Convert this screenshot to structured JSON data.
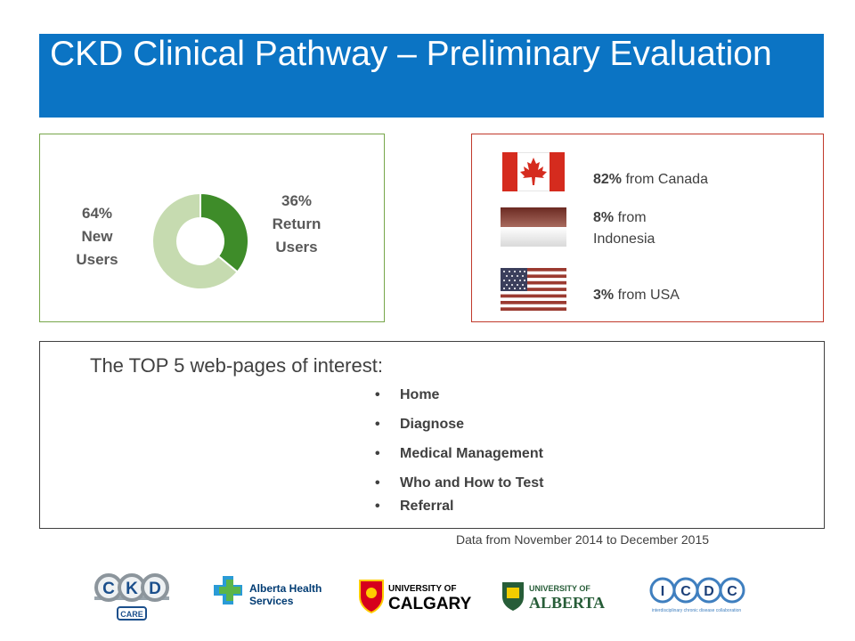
{
  "title": "CKD Clinical Pathway – Preliminary Evaluation",
  "users": {
    "new": {
      "percent": "64%",
      "line1": "New",
      "line2": "Users",
      "value": 64,
      "color": "#c6dbb0"
    },
    "return": {
      "percent": "36%",
      "line1": "Return",
      "line2": "Users",
      "value": 36,
      "color": "#3e8c29"
    }
  },
  "countries": [
    {
      "percent": "82%",
      "text": "from Canada",
      "flag": "canada-flag"
    },
    {
      "percent": "8%",
      "text": "from Indonesia",
      "flag": "indonesia-flag"
    },
    {
      "percent": "3%",
      "text": "from USA",
      "flag": "usa-flag"
    }
  ],
  "pages": {
    "heading": "The TOP 5 web-pages of interest:",
    "bullet": "•",
    "items": [
      "Home",
      "Diagnose",
      "Medical Management",
      "Who and How to Test",
      "Referral"
    ]
  },
  "footnote": "Data from November 2014 to December 2015",
  "logos": {
    "ckd": {
      "letters": [
        "C",
        "K",
        "D"
      ],
      "sub": "CARE"
    },
    "ahs": {
      "line1": "Alberta Health",
      "line2": "Services"
    },
    "ucalgary": {
      "line1": "UNIVERSITY OF",
      "line2": "CALGARY"
    },
    "ualberta": {
      "line1": "UNIVERSITY OF",
      "line2": "ALBERTA"
    },
    "icdc": {
      "letters": [
        "I",
        "C",
        "D",
        "C"
      ],
      "sub": "interdisciplinary chronic disease collaboration"
    }
  },
  "colors": {
    "title_bar": "#0b74c4",
    "donut_panel_border": "#77a64a",
    "country_panel_border": "#c0392b"
  }
}
